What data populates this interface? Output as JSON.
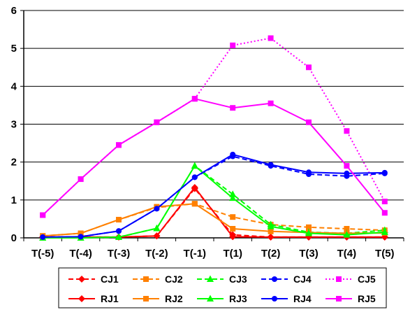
{
  "chart_data": {
    "type": "line",
    "title": "",
    "xlabel": "",
    "ylabel": "",
    "ylim": [
      0,
      6
    ],
    "yticks": [
      "0",
      "1",
      "2",
      "3",
      "4",
      "5",
      "6"
    ],
    "categories": [
      "T(-5)",
      "T(-4)",
      "T(-3)",
      "T(-2)",
      "T(-1)",
      "T(1)",
      "T(2)",
      "T(3)",
      "T(4)",
      "T(5)"
    ],
    "grid": "horizontal",
    "legend_position": "bottom",
    "series": [
      {
        "name": "CJ1",
        "color": "#ff0000",
        "style": "dashed",
        "marker": "diamond",
        "values": [
          0.02,
          0.02,
          0.02,
          0.05,
          1.3,
          0.08,
          0.02,
          0.02,
          0.02,
          0.02
        ]
      },
      {
        "name": "CJ2",
        "color": "#ff8000",
        "style": "dashed",
        "marker": "square",
        "values": [
          0.05,
          0.12,
          0.48,
          0.8,
          0.9,
          0.55,
          0.35,
          0.28,
          0.24,
          0.2
        ]
      },
      {
        "name": "CJ3",
        "color": "#00ff00",
        "style": "dashed",
        "marker": "triangle",
        "values": [
          0.0,
          0.0,
          0.02,
          0.25,
          1.9,
          1.15,
          0.35,
          0.15,
          0.12,
          0.2
        ]
      },
      {
        "name": "CJ4",
        "color": "#0000ff",
        "style": "dashed",
        "marker": "circle",
        "values": [
          0.02,
          0.03,
          0.18,
          0.77,
          1.6,
          2.15,
          1.9,
          1.68,
          1.63,
          1.7
        ]
      },
      {
        "name": "CJ5",
        "color": "#ff00ff",
        "style": "dotted",
        "marker": "square",
        "values": [
          0.6,
          1.55,
          2.45,
          3.05,
          3.67,
          5.08,
          5.27,
          4.5,
          2.82,
          0.96
        ]
      },
      {
        "name": "RJ1",
        "color": "#ff0000",
        "style": "solid",
        "marker": "diamond",
        "values": [
          0.02,
          0.02,
          0.02,
          0.05,
          1.33,
          0.03,
          0.02,
          0.02,
          0.02,
          0.02
        ]
      },
      {
        "name": "RJ2",
        "color": "#ff8000",
        "style": "solid",
        "marker": "square",
        "values": [
          0.05,
          0.12,
          0.48,
          0.82,
          0.9,
          0.24,
          0.17,
          0.14,
          0.12,
          0.13
        ]
      },
      {
        "name": "RJ3",
        "color": "#00ff00",
        "style": "solid",
        "marker": "triangle",
        "values": [
          0.0,
          0.0,
          0.02,
          0.25,
          1.9,
          1.05,
          0.3,
          0.12,
          0.08,
          0.15
        ]
      },
      {
        "name": "RJ4",
        "color": "#0000ff",
        "style": "solid",
        "marker": "circle",
        "values": [
          0.02,
          0.03,
          0.18,
          0.77,
          1.6,
          2.2,
          1.93,
          1.73,
          1.7,
          1.72
        ]
      },
      {
        "name": "RJ5",
        "color": "#ff00ff",
        "style": "solid",
        "marker": "square",
        "values": [
          0.6,
          1.55,
          2.45,
          3.05,
          3.67,
          3.43,
          3.55,
          3.05,
          1.9,
          0.66
        ]
      }
    ]
  }
}
